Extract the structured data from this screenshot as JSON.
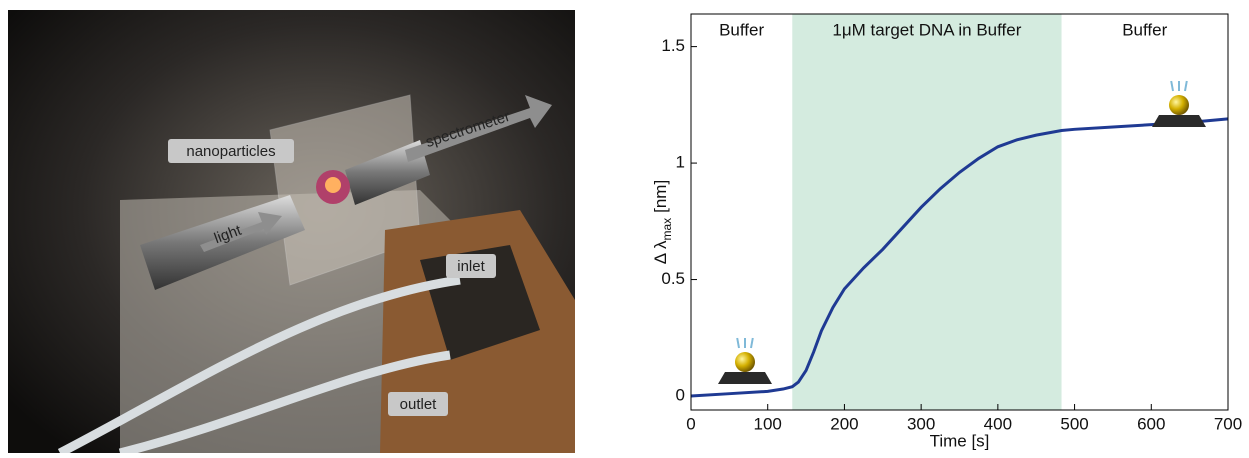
{
  "photo": {
    "labels": [
      "nanoparticles",
      "spectrometer",
      "light",
      "inlet",
      "outlet"
    ]
  },
  "chart_data": {
    "type": "line",
    "xlabel": "Time [s]",
    "ylabel": {
      "symbol": "Δ λ",
      "subscript": "max",
      "unit": "[nm]"
    },
    "regions": [
      {
        "label": "Buffer",
        "start": 0,
        "end": 132
      },
      {
        "label": "1μM target DNA in Buffer",
        "start": 132,
        "end": 483,
        "color": "#d4ebdf"
      },
      {
        "label": "Buffer",
        "start": 483,
        "end": 700
      }
    ],
    "x": [
      0,
      50,
      100,
      120,
      132,
      140,
      150,
      160,
      170,
      185,
      200,
      225,
      250,
      275,
      300,
      325,
      350,
      375,
      400,
      425,
      450,
      483,
      500,
      550,
      600,
      650,
      700
    ],
    "series": [
      {
        "color": "#1f3a93",
        "values": [
          0,
          0.01,
          0.02,
          0.03,
          0.04,
          0.06,
          0.11,
          0.19,
          0.28,
          0.38,
          0.46,
          0.55,
          0.63,
          0.72,
          0.81,
          0.89,
          0.96,
          1.02,
          1.07,
          1.1,
          1.12,
          1.14,
          1.145,
          1.155,
          1.165,
          1.175,
          1.19
        ]
      }
    ],
    "xlim": [
      0,
      700
    ],
    "ylim": [
      -0.06,
      1.64
    ],
    "xticks": [
      0,
      100,
      200,
      300,
      400,
      500,
      600,
      700
    ],
    "yticks": [
      0,
      0.5,
      1,
      1.5
    ]
  }
}
